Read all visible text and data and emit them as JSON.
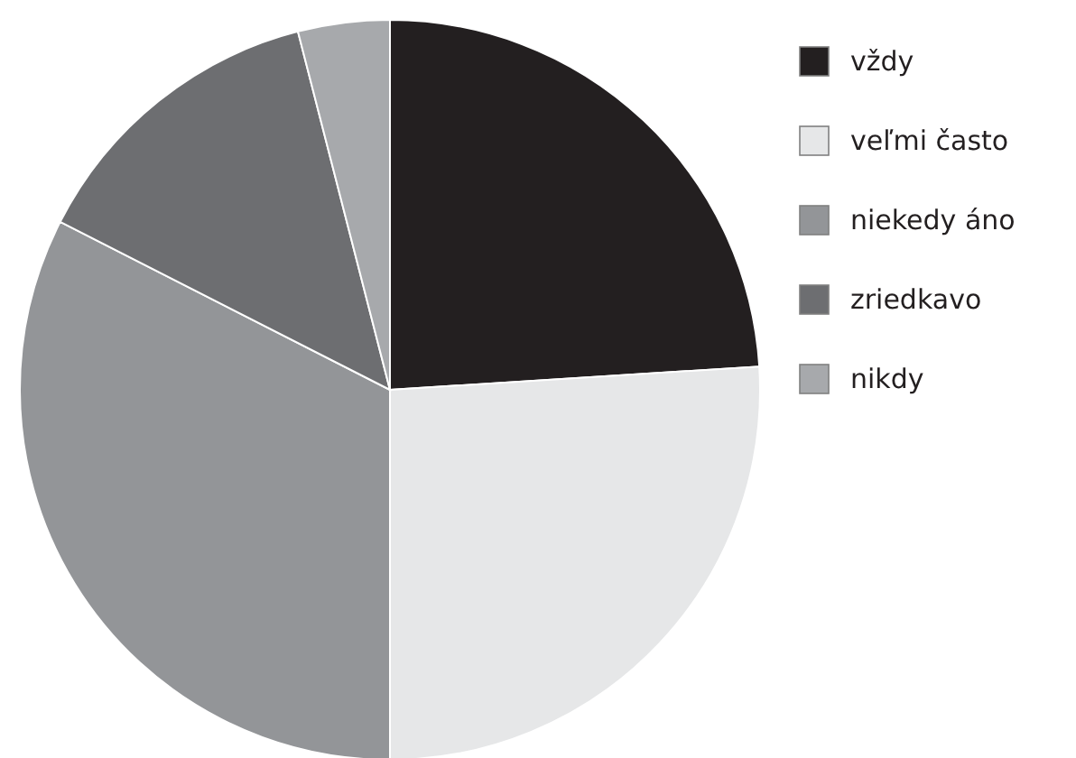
{
  "chart_data": {
    "type": "pie",
    "categories": [
      "vždy",
      "veľmi často",
      "niekedy áno",
      "zriedkavo",
      "nikdy"
    ],
    "values": [
      24,
      26,
      32.5,
      13.5,
      4
    ],
    "colors": [
      "#231f20",
      "#e6e7e8",
      "#939598",
      "#6d6e71",
      "#a7a9ac"
    ],
    "legend": "top right"
  }
}
